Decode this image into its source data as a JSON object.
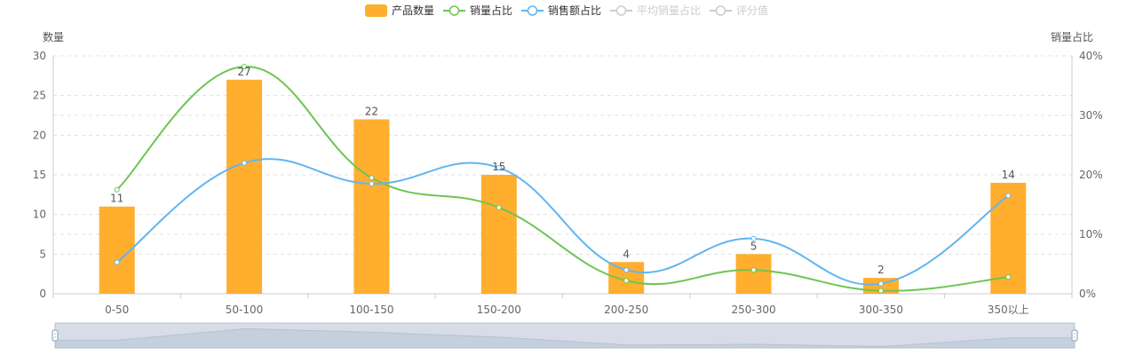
{
  "chart_data": {
    "type": "bar+line",
    "categories": [
      "0-50",
      "50-100",
      "100-150",
      "150-200",
      "200-250",
      "250-300",
      "300-350",
      "350以上"
    ],
    "series": [
      {
        "name": "产品数量",
        "kind": "bar",
        "axis": "left",
        "color": "#FFAE2E",
        "values": [
          11,
          27,
          22,
          15,
          4,
          5,
          2,
          14
        ],
        "labels_shown": true
      },
      {
        "name": "销量占比",
        "kind": "line",
        "axis": "right",
        "color": "#6DC553",
        "values": [
          17.5,
          38.2,
          19.5,
          14.5,
          2.2,
          4.0,
          0.5,
          2.8
        ]
      },
      {
        "name": "销售额占比",
        "kind": "line",
        "axis": "right",
        "color": "#62B5F0",
        "values": [
          5.3,
          22.0,
          18.5,
          21.2,
          4.0,
          9.3,
          1.7,
          16.5
        ]
      },
      {
        "name": "平均销量占比",
        "kind": "line",
        "axis": "right",
        "color": "#CCCCCC",
        "hidden": true
      },
      {
        "name": "评分值",
        "kind": "line",
        "axis": "right",
        "color": "#CCCCCC",
        "hidden": true
      }
    ],
    "y_left": {
      "label": "数量",
      "min": 0,
      "max": 30,
      "ticks": [
        0,
        5,
        10,
        15,
        20,
        25,
        30
      ]
    },
    "y_right": {
      "label": "销量占比",
      "min": 0,
      "max": 40,
      "ticks": [
        0,
        10,
        20,
        30,
        40
      ],
      "tick_labels": [
        "0%",
        "10%",
        "20%",
        "30%",
        "40%"
      ]
    },
    "grid": true,
    "grid_style": "dashed",
    "legend_position": "top-center",
    "data_zoom": {
      "visible": true,
      "range": [
        0,
        100
      ]
    }
  },
  "colors": {
    "axis": "#666666",
    "grid": "#E0E0E0",
    "zoom_fill": "#D7DDE6",
    "zoom_border": "#B8C3D4",
    "zoom_handle": "#A7B7CC"
  }
}
